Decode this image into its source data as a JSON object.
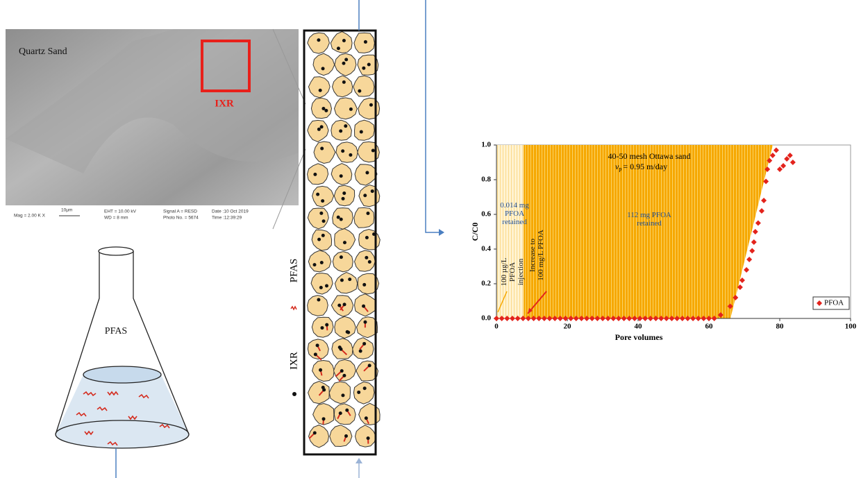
{
  "sem_image": {
    "label": "Quartz Sand",
    "highlight": "IXR",
    "info": [
      "Mag = 2.00 K X",
      "10μm",
      "EHT = 10.00 kV",
      "WD = 8 mm",
      "Signal A = RESD",
      "Photo No. = 5674",
      "Date :10 Oct 2019",
      "Time :12:39:29"
    ]
  },
  "flask": {
    "label": "PFAS"
  },
  "column": {
    "legend": [
      "PFAS",
      "IXR"
    ]
  },
  "chart_data": {
    "type": "scatter",
    "x_label": "Pore volumes",
    "y_label": "C/C0",
    "xlim": [
      0,
      100
    ],
    "ylim": [
      0,
      1
    ],
    "xticks": [
      0,
      20,
      40,
      60,
      80,
      100
    ],
    "yticks": [
      {
        "value": 0,
        "label": "0.0"
      },
      0.2,
      0.4,
      0.6,
      0.8,
      {
        "value": 1,
        "label": "1.0"
      }
    ],
    "annotations": [
      "40-50 mesh Ottawa sand",
      "v",
      "p",
      "= 0.95 m/day",
      "0.014 mg PFOA retained",
      "112 mg PFOA retained",
      "100 µg/L PFOA injection",
      "Increase to 100 mg/L PFOA"
    ],
    "legend": "lower right",
    "series": [
      {
        "name": "PFOA",
        "color": "#e3231c",
        "x": [
          0,
          1.5,
          3,
          4.5,
          6,
          7.5,
          9,
          10.5,
          12,
          13.5,
          15,
          16.5,
          18,
          19.5,
          21,
          22.5,
          24,
          25.5,
          27,
          28.5,
          30,
          31.5,
          33,
          34.5,
          36,
          37.5,
          39,
          40.5,
          42,
          43.5,
          45,
          46.5,
          48,
          49.5,
          51,
          52.5,
          54,
          55.5,
          57,
          58.5,
          60,
          61.5,
          63.3,
          66,
          67.5,
          68.8,
          69.4,
          70.6,
          71.4,
          72.2,
          72.7,
          73.1,
          73.9,
          74.9,
          75.5,
          76.1,
          76.5,
          77.1,
          78,
          79,
          80,
          81,
          82,
          82.9,
          83.7
        ],
        "values": [
          0,
          0,
          0,
          0,
          0,
          0,
          0,
          0,
          0,
          0,
          0,
          0,
          0,
          0,
          0,
          0,
          0,
          0,
          0,
          0,
          0,
          0,
          0,
          0,
          0,
          0,
          0,
          0,
          0,
          0,
          0,
          0,
          0,
          0,
          0,
          0,
          0,
          0,
          0,
          0,
          0,
          0,
          0.02,
          0.07,
          0.12,
          0.18,
          0.22,
          0.28,
          0.34,
          0.39,
          0.44,
          0.5,
          0.55,
          0.62,
          0.68,
          0.79,
          0.86,
          0.91,
          0.94,
          0.97,
          0.86,
          0.88,
          0.92,
          0.94,
          0.9
        ]
      }
    ]
  }
}
